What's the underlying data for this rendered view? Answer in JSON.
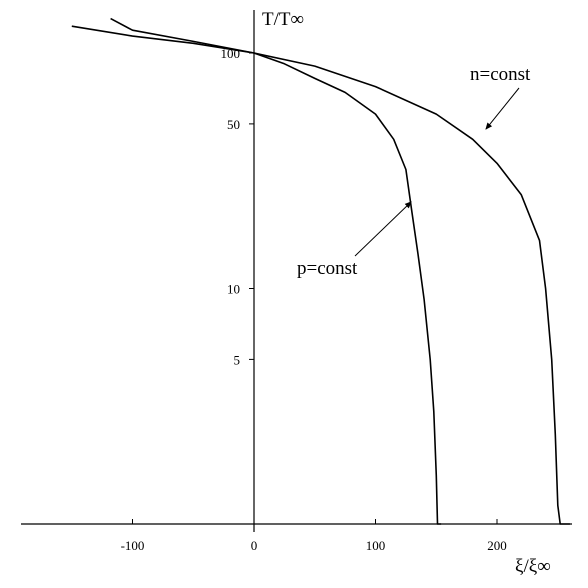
{
  "chart_data": {
    "type": "line",
    "xlabel": "ξ/ξ∞",
    "ylabel": "T/T∞",
    "xlim": [
      -200,
      260
    ],
    "y_scale": "log",
    "ylim": [
      1,
      160
    ],
    "grid": false,
    "x_ticks": [
      {
        "value": -100,
        "label": "-100"
      },
      {
        "value": 0,
        "label": "0"
      },
      {
        "value": 100,
        "label": "100"
      },
      {
        "value": 200,
        "label": "200"
      }
    ],
    "y_ticks": [
      {
        "value": 5,
        "label": "5"
      },
      {
        "value": 10,
        "label": "10"
      },
      {
        "value": 50,
        "label": "50"
      },
      {
        "value": 100,
        "label": "100"
      }
    ],
    "series": [
      {
        "name": "n=const",
        "x": [
          -150,
          -100,
          -50,
          0,
          50,
          100,
          150,
          180,
          200,
          220,
          235,
          240,
          245,
          248,
          250,
          252,
          260
        ],
        "y": [
          130,
          118,
          110,
          100,
          88,
          72,
          55,
          43,
          34,
          25,
          16,
          10,
          5,
          2.4,
          1.2,
          1.0,
          1.0
        ]
      },
      {
        "name": "p=const",
        "x": [
          -118,
          -100,
          -50,
          0,
          25,
          50,
          75,
          100,
          115,
          125,
          130,
          135,
          140,
          145,
          148,
          150,
          151,
          154
        ],
        "y": [
          140,
          125,
          112,
          100,
          90,
          78,
          68,
          55,
          43,
          32,
          21,
          14,
          9,
          5,
          3,
          1.6,
          1.0,
          1.0
        ]
      }
    ],
    "annotations": [
      {
        "text": "n=const",
        "target_series": "n=const"
      },
      {
        "text": "p=const",
        "target_series": "p=const"
      }
    ]
  }
}
